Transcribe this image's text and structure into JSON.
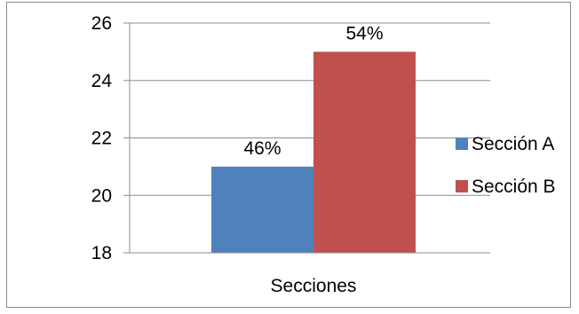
{
  "chart_data": {
    "type": "bar",
    "categories": [
      "Secciones"
    ],
    "series": [
      {
        "name": "Sección A",
        "values": [
          21
        ],
        "label": "46%",
        "color": "#4f81bd"
      },
      {
        "name": "Sección B",
        "values": [
          25
        ],
        "label": "54%",
        "color": "#c0504d"
      }
    ],
    "ylim": [
      18,
      26
    ],
    "yticks": [
      "18",
      "20",
      "22",
      "24",
      "26"
    ],
    "grid": true,
    "legend_position": "right"
  }
}
